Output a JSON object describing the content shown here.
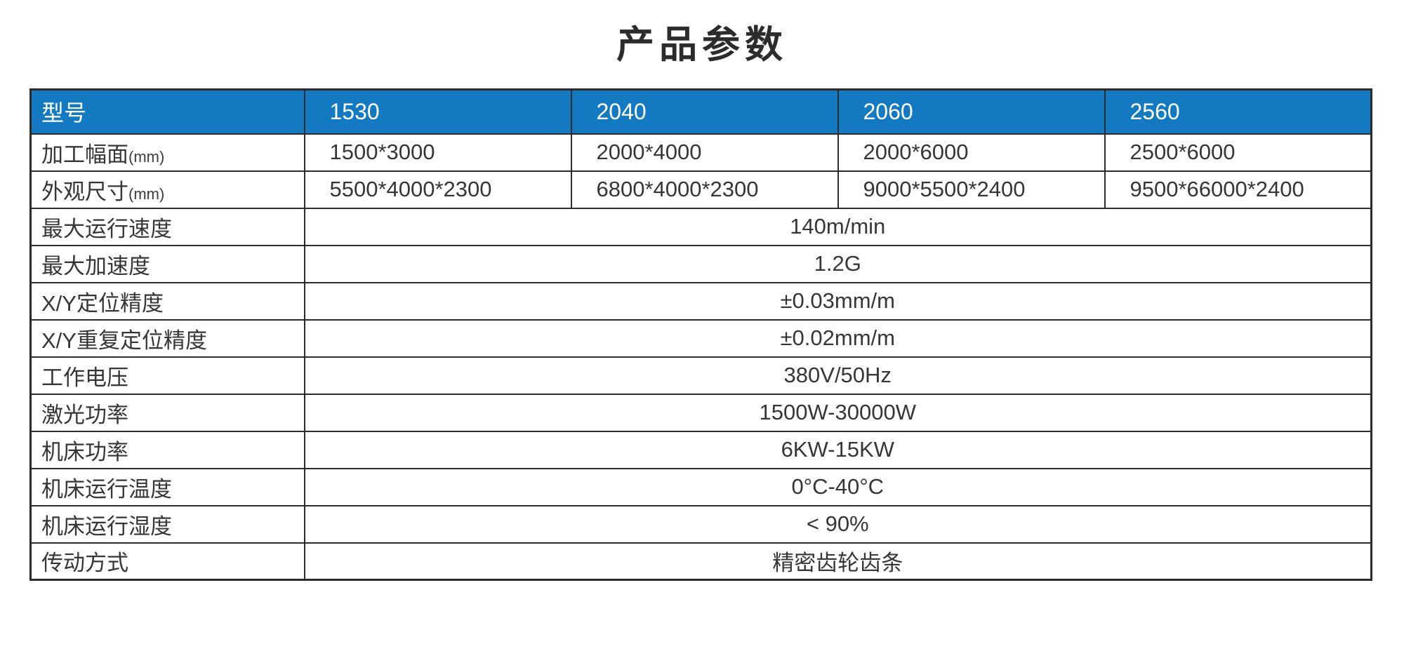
{
  "page": {
    "title": "产品参数",
    "background": "#ffffff"
  },
  "colors": {
    "header_bg": "#1379c0",
    "header_text": "#ffffff",
    "border": "#2b2b2b",
    "body_text": "#363636"
  },
  "table": {
    "header": {
      "label": "型号",
      "models": [
        "1530",
        "2040",
        "2060",
        "2560"
      ]
    },
    "split_rows": [
      {
        "label": "加工幅面",
        "unit": "(mm)",
        "values": [
          "1500*3000",
          "2000*4000",
          "2000*6000",
          "2500*6000"
        ]
      },
      {
        "label": "外观尺寸",
        "unit": "(mm)",
        "values": [
          "5500*4000*2300",
          "6800*4000*2300",
          "9000*5500*2400",
          "9500*66000*2400"
        ]
      }
    ],
    "merged_rows": [
      {
        "label": "最大运行速度",
        "value": "140m/min"
      },
      {
        "label": "最大加速度",
        "value": "1.2G"
      },
      {
        "label": "X/Y定位精度",
        "value": "±0.03mm/m"
      },
      {
        "label": "X/Y重复定位精度",
        "value": "±0.02mm/m"
      },
      {
        "label": "工作电压",
        "value": "380V/50Hz"
      },
      {
        "label": "激光功率",
        "value": "1500W-30000W"
      },
      {
        "label": "机床功率",
        "value": "6KW-15KW"
      },
      {
        "label": "机床运行温度",
        "value": "0°C-40°C"
      },
      {
        "label": "机床运行湿度",
        "value": "< 90%"
      },
      {
        "label": "传动方式",
        "value": "精密齿轮齿条"
      }
    ]
  }
}
